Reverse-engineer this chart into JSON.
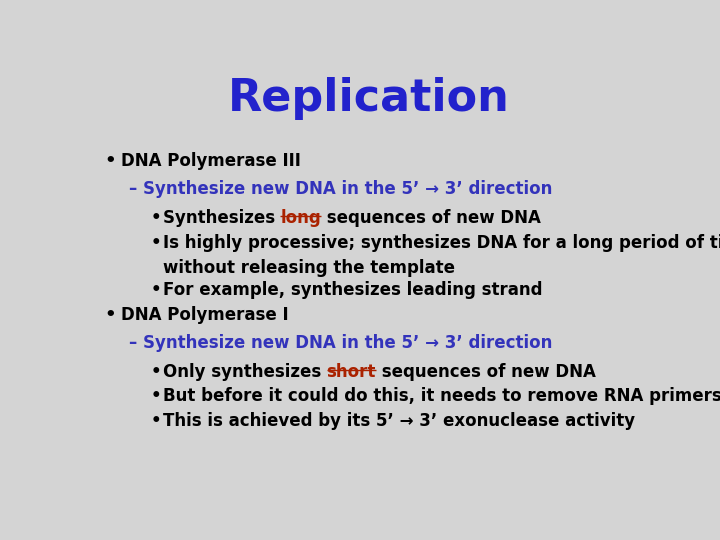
{
  "title": "Replication",
  "title_color": "#2222cc",
  "title_fontsize": 32,
  "title_font": "Comic Sans MS",
  "bg_color": "#d4d4d4",
  "body_fontsize": 12,
  "body_font": "Arial",
  "black": "#000000",
  "blue": "#3333bb",
  "red": "#aa2200",
  "sections": [
    {
      "bullet": "DNA Polymerase III",
      "sub": "Synthesize new DNA in the 5’ → 3’ direction",
      "items": [
        {
          "line1": "Synthesizes ",
          "highlight": "long",
          "line2": " sequences of new DNA",
          "extra": null
        },
        {
          "line1": "Is highly processive; synthesizes DNA for a long period of time",
          "highlight": null,
          "line2": null,
          "extra": "without releasing the template"
        },
        {
          "line1": "For example, synthesizes leading strand",
          "highlight": null,
          "line2": null,
          "extra": null
        }
      ]
    },
    {
      "bullet": "DNA Polymerase I",
      "sub": "Synthesize new DNA in the 5’ → 3’ direction",
      "items": [
        {
          "line1": "Only synthesizes ",
          "highlight": "short",
          "line2": " sequences of new DNA",
          "extra": null
        },
        {
          "line1": "But before it could do this, it needs to remove RNA primers",
          "highlight": null,
          "line2": null,
          "extra": null
        },
        {
          "line1": "This is achieved by its 5’ → 3’ exonuclease activity",
          "highlight": null,
          "line2": null,
          "extra": null
        }
      ]
    }
  ]
}
